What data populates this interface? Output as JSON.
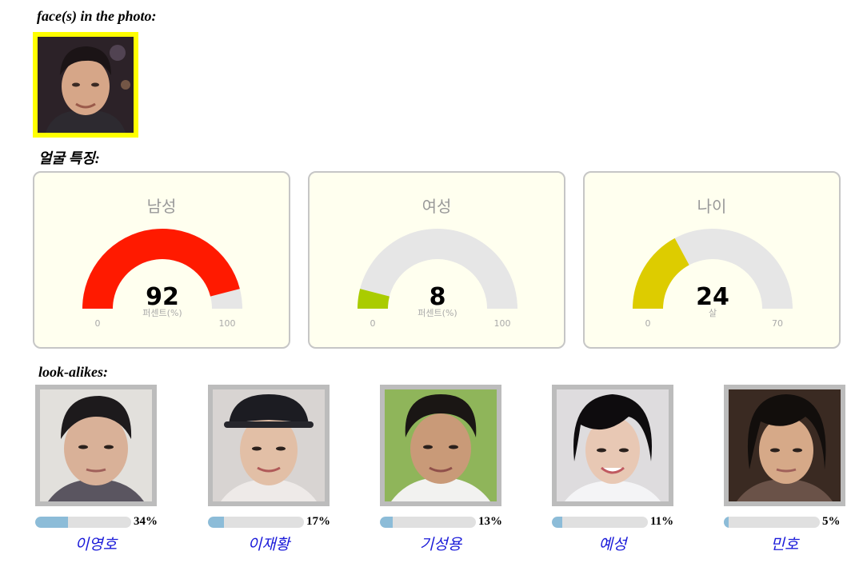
{
  "faces_section": {
    "title": "face(s) in the photo:"
  },
  "features_section": {
    "title": "얼굴 특징:"
  },
  "gauges": [
    {
      "title": "남성",
      "value": "92",
      "unit": "퍼센트(%)",
      "min": "0",
      "max": "100",
      "fraction": 0.92,
      "color": "#ff1a00"
    },
    {
      "title": "여성",
      "value": "8",
      "unit": "퍼센트(%)",
      "min": "0",
      "max": "100",
      "fraction": 0.08,
      "color": "#aacc00"
    },
    {
      "title": "나이",
      "value": "24",
      "unit": "살",
      "min": "0",
      "max": "70",
      "fraction": 0.343,
      "color": "#ddcc00"
    }
  ],
  "lookalikes_section": {
    "title": "look-alikes:"
  },
  "lookalikes": [
    {
      "name": "이영호",
      "percent": "34%",
      "fraction": 0.34
    },
    {
      "name": "이재황",
      "percent": "17%",
      "fraction": 0.17
    },
    {
      "name": "기성용",
      "percent": "13%",
      "fraction": 0.13
    },
    {
      "name": "예성",
      "percent": "11%",
      "fraction": 0.11
    },
    {
      "name": "민호",
      "percent": "5%",
      "fraction": 0.05
    }
  ],
  "colors": {
    "gauge_track": "#e6e6e6",
    "card_bg": "#ffffef",
    "bar_fill": "#8cbcd8",
    "face_highlight": "#ffff00"
  }
}
